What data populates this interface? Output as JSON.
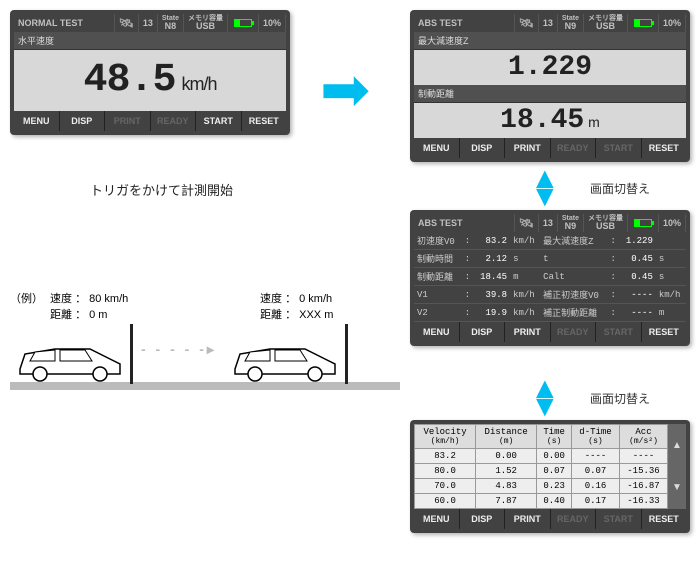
{
  "colors": {
    "device_bg": "#424242",
    "screen_bg": "#d8d8d8",
    "accent_arrow": "#00bdef",
    "battery": "#00ff00",
    "disabled_text": "#666666"
  },
  "status": {
    "normal_title": "NORMAL TEST",
    "abs_title": "ABS TEST",
    "sat_count": "13",
    "state_label": "State",
    "state_n8": "N8",
    "state_n9": "N9",
    "mem_label": "メモリ容量",
    "usb_label": "USB",
    "battery_pct": "10%"
  },
  "device1": {
    "header": "水平速度",
    "value": "48.5",
    "unit": "km/h"
  },
  "device2": {
    "row1_header": "最大減速度Z",
    "row1_value": "1.229",
    "row2_header": "制動距離",
    "row2_value": "18.45",
    "row2_unit": "m"
  },
  "device3": {
    "left": [
      {
        "label": "初速度V0",
        "value": "83.2",
        "unit": "km/h"
      },
      {
        "label": "制動時間",
        "value": "2.12",
        "unit": "s"
      },
      {
        "label": "制動距離",
        "value": "18.45",
        "unit": "m"
      },
      {
        "label": "V1",
        "value": "39.8",
        "unit": "km/h"
      },
      {
        "label": "V2",
        "value": "19.9",
        "unit": "km/h"
      }
    ],
    "right": [
      {
        "label": "最大減速度Z",
        "value": "1.229",
        "unit": ""
      },
      {
        "label": "t",
        "value": "0.45",
        "unit": "s"
      },
      {
        "label": "Calt",
        "value": "0.45",
        "unit": "s"
      },
      {
        "label": "補正初速度V0",
        "value": "----",
        "unit": "km/h"
      },
      {
        "label": "補正制動距離",
        "value": "----",
        "unit": "m"
      }
    ]
  },
  "device4": {
    "columns": [
      {
        "h1": "Velocity",
        "h2": "(km/h)"
      },
      {
        "h1": "Distance",
        "h2": "(m)"
      },
      {
        "h1": "Time",
        "h2": "(s)"
      },
      {
        "h1": "d-Time",
        "h2": "(s)"
      },
      {
        "h1": "Acc",
        "h2": "(m/s²)"
      }
    ],
    "rows": [
      [
        "83.2",
        "0.00",
        "0.00",
        "----",
        "----"
      ],
      [
        "80.0",
        "1.52",
        "0.07",
        "0.07",
        "-15.36"
      ],
      [
        "70.0",
        "4.83",
        "0.23",
        "0.16",
        "-16.87"
      ],
      [
        "60.0",
        "7.87",
        "0.40",
        "0.17",
        "-16.33"
      ]
    ]
  },
  "buttons": {
    "menu": "MENU",
    "disp": "DISP",
    "print": "PRINT",
    "ready": "READY",
    "start": "START",
    "reset": "RESET"
  },
  "captions": {
    "trigger": "トリガをかけて計測開始",
    "switch": "画面切替え",
    "example": "（例）",
    "speed": "速度",
    "distance": "距離",
    "colon": "：",
    "before_speed": "80 km/h",
    "before_dist": "0 m",
    "after_speed": "0  km/h",
    "after_dist": "XXX m"
  }
}
